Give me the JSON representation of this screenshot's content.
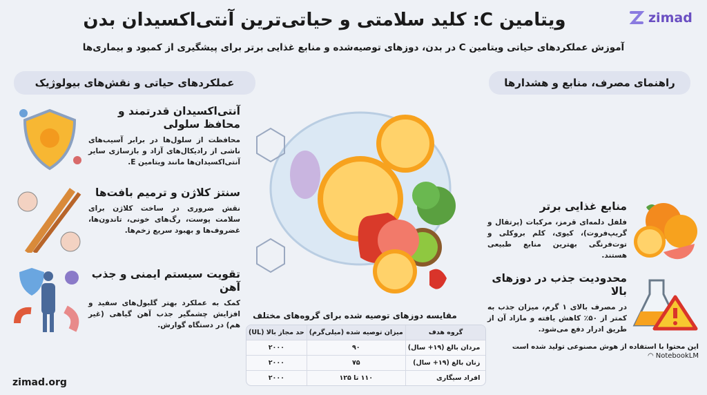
{
  "header": {
    "title": "ویتامین C: کلید سلامتی و حیاتی‌ترین آنتی‌اکسیدان بدن",
    "subtitle": "آموزش عملکردهای حیاتی ویتامین C در بدن، دوزهای توصیه‌شده و منابع غذایی برتر برای پیشگیری از کمبود و بیماری‌ها",
    "logo_text": "zimad"
  },
  "colors": {
    "accent": "#f39a1e",
    "brand": "#6a4fc2",
    "pill": "#dfe3ef",
    "background": "#eef1f6"
  },
  "left": {
    "heading": "عملکردهای حیاتی و نقش‌های بیولوژیک",
    "cards": [
      {
        "title": "آنتی‌اکسیدان قدرتمند و محافظ سلولی",
        "text": "محافظت از سلول‌ها در برابر آسیب‌های ناشی از رادیکال‌های آزاد و بازسازی سایر آنتی‌اکسیدان‌ها مانند ویتامین E.",
        "icon": "shield-sun-icon"
      },
      {
        "title": "سنتز کلاژن و ترمیم بافت‌ها",
        "text": "نقش ضروری در ساخت کلاژن برای سلامت پوست، رگ‌های خونی، تاندون‌ها، غضروف‌ها و بهبود سریع زخم‌ها.",
        "icon": "collagen-icon"
      },
      {
        "title": "تقویت سیستم ایمنی و جذب آهن",
        "text": "کمک به عملکرد بهتر گلبول‌های سفید و افزایش چشمگیر جذب آهن گیاهی (غیر هم) در دستگاه گوارش.",
        "icon": "immune-body-icon"
      }
    ]
  },
  "right": {
    "heading": "راهنمای مصرف، منابع و هشدارها",
    "cards": [
      {
        "title": "منابع غذایی برتر",
        "text": "فلفل دلمه‌ای قرمز، مرکبات (پرتقال و گریپ‌فروت)، کیوی، کلم بروکلی و توت‌فرنگی بهترین منابع طبیعی هستند.",
        "icon": "citrus-icon"
      },
      {
        "title": "محدودیت جذب در دوزهای بالا",
        "text": "در مصرف بالای ۱ گرم، میزان جذب به کمتر از ۵۰٪ کاهش یافته و مازاد آن از طریق ادرار دفع می‌شود.",
        "icon": "flask-warning-icon"
      }
    ]
  },
  "table": {
    "title": "مقایسه دوزهای توصیه شده برای گروه‌های مختلف",
    "headers": [
      "گروه هدف",
      "میزان توصیه شده (میلی‌گرم)",
      "حد مجاز بالا (UL)"
    ],
    "rows": [
      [
        "مردان بالغ (۱۹+ سال)",
        "۹۰",
        "۲۰۰۰"
      ],
      [
        "زنان بالغ (۱۹+ سال)",
        "۷۵",
        "۲۰۰۰"
      ],
      [
        "افراد سیگاری",
        "۱۱۰ تا ۱۲۵",
        "۲۰۰۰"
      ]
    ]
  },
  "footer": {
    "site": "zimad.org",
    "ai_note": "این محتوا با استفاده از هوش مصنوعی تولید شده است",
    "notebook": "NotebookLM"
  }
}
